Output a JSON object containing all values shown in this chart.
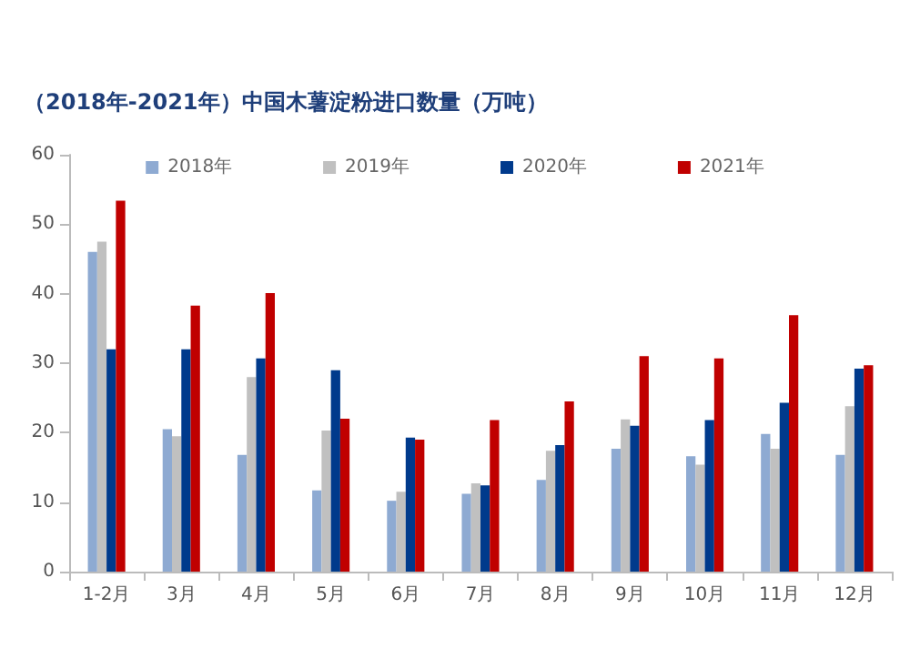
{
  "chart_data": {
    "type": "bar",
    "title": "（2018年-2021年）中国木薯淀粉进口数量（万吨）",
    "categories": [
      "1-2月",
      "3月",
      "4月",
      "5月",
      "6月",
      "7月",
      "8月",
      "9月",
      "10月",
      "11月",
      "12月"
    ],
    "series": [
      {
        "name": "2018年",
        "color": "#8eaad2",
        "values": [
          46,
          20.5,
          16.8,
          11.7,
          10.2,
          11.2,
          13.2,
          17.7,
          16.6,
          19.8,
          16.8
        ]
      },
      {
        "name": "2019年",
        "color": "#c0c0c0",
        "values": [
          47.5,
          19.5,
          28,
          20.3,
          11.5,
          12.7,
          17.4,
          21.9,
          15.4,
          17.7,
          23.8
        ]
      },
      {
        "name": "2020年",
        "color": "#003a8c",
        "values": [
          32,
          32,
          30.7,
          29,
          19.3,
          12.4,
          18.2,
          21,
          21.8,
          24.3,
          29.2
        ]
      },
      {
        "name": "2021年",
        "color": "#c00000",
        "values": [
          53.4,
          38.3,
          40.1,
          22,
          19,
          21.8,
          24.5,
          31,
          30.7,
          36.9,
          29.7
        ]
      }
    ],
    "ylim": [
      0,
      60
    ],
    "yticks": [
      0,
      10,
      20,
      30,
      40,
      50,
      60
    ],
    "grid": false,
    "legend": "top"
  }
}
